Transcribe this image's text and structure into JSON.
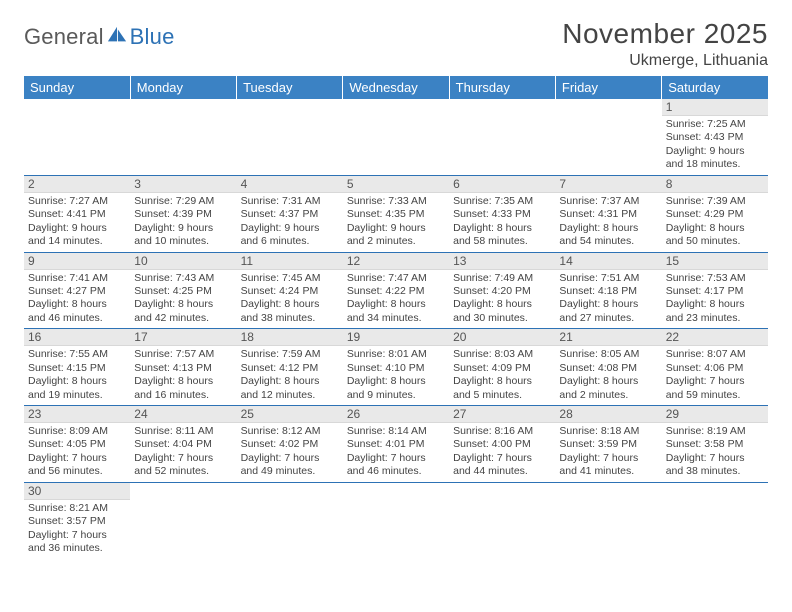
{
  "brand": {
    "word1": "General",
    "word2": "Blue"
  },
  "header": {
    "title": "November 2025",
    "location": "Ukmerge, Lithuania"
  },
  "colors": {
    "header_bg": "#3b82c4",
    "header_text": "#ffffff",
    "week_divider": "#2d72b5",
    "daynum_bg": "#e9e9e9",
    "text": "#444444",
    "brand_gray": "#5a5a5a",
    "brand_blue": "#2d72b5"
  },
  "weekdays": [
    "Sunday",
    "Monday",
    "Tuesday",
    "Wednesday",
    "Thursday",
    "Friday",
    "Saturday"
  ],
  "weeks": [
    [
      null,
      null,
      null,
      null,
      null,
      null,
      {
        "n": "1",
        "sunrise": "7:25 AM",
        "sunset": "4:43 PM",
        "dl_h": "9",
        "dl_m": "18"
      }
    ],
    [
      {
        "n": "2",
        "sunrise": "7:27 AM",
        "sunset": "4:41 PM",
        "dl_h": "9",
        "dl_m": "14"
      },
      {
        "n": "3",
        "sunrise": "7:29 AM",
        "sunset": "4:39 PM",
        "dl_h": "9",
        "dl_m": "10"
      },
      {
        "n": "4",
        "sunrise": "7:31 AM",
        "sunset": "4:37 PM",
        "dl_h": "9",
        "dl_m": "6"
      },
      {
        "n": "5",
        "sunrise": "7:33 AM",
        "sunset": "4:35 PM",
        "dl_h": "9",
        "dl_m": "2"
      },
      {
        "n": "6",
        "sunrise": "7:35 AM",
        "sunset": "4:33 PM",
        "dl_h": "8",
        "dl_m": "58"
      },
      {
        "n": "7",
        "sunrise": "7:37 AM",
        "sunset": "4:31 PM",
        "dl_h": "8",
        "dl_m": "54"
      },
      {
        "n": "8",
        "sunrise": "7:39 AM",
        "sunset": "4:29 PM",
        "dl_h": "8",
        "dl_m": "50"
      }
    ],
    [
      {
        "n": "9",
        "sunrise": "7:41 AM",
        "sunset": "4:27 PM",
        "dl_h": "8",
        "dl_m": "46"
      },
      {
        "n": "10",
        "sunrise": "7:43 AM",
        "sunset": "4:25 PM",
        "dl_h": "8",
        "dl_m": "42"
      },
      {
        "n": "11",
        "sunrise": "7:45 AM",
        "sunset": "4:24 PM",
        "dl_h": "8",
        "dl_m": "38"
      },
      {
        "n": "12",
        "sunrise": "7:47 AM",
        "sunset": "4:22 PM",
        "dl_h": "8",
        "dl_m": "34"
      },
      {
        "n": "13",
        "sunrise": "7:49 AM",
        "sunset": "4:20 PM",
        "dl_h": "8",
        "dl_m": "30"
      },
      {
        "n": "14",
        "sunrise": "7:51 AM",
        "sunset": "4:18 PM",
        "dl_h": "8",
        "dl_m": "27"
      },
      {
        "n": "15",
        "sunrise": "7:53 AM",
        "sunset": "4:17 PM",
        "dl_h": "8",
        "dl_m": "23"
      }
    ],
    [
      {
        "n": "16",
        "sunrise": "7:55 AM",
        "sunset": "4:15 PM",
        "dl_h": "8",
        "dl_m": "19"
      },
      {
        "n": "17",
        "sunrise": "7:57 AM",
        "sunset": "4:13 PM",
        "dl_h": "8",
        "dl_m": "16"
      },
      {
        "n": "18",
        "sunrise": "7:59 AM",
        "sunset": "4:12 PM",
        "dl_h": "8",
        "dl_m": "12"
      },
      {
        "n": "19",
        "sunrise": "8:01 AM",
        "sunset": "4:10 PM",
        "dl_h": "8",
        "dl_m": "9"
      },
      {
        "n": "20",
        "sunrise": "8:03 AM",
        "sunset": "4:09 PM",
        "dl_h": "8",
        "dl_m": "5"
      },
      {
        "n": "21",
        "sunrise": "8:05 AM",
        "sunset": "4:08 PM",
        "dl_h": "8",
        "dl_m": "2"
      },
      {
        "n": "22",
        "sunrise": "8:07 AM",
        "sunset": "4:06 PM",
        "dl_h": "7",
        "dl_m": "59"
      }
    ],
    [
      {
        "n": "23",
        "sunrise": "8:09 AM",
        "sunset": "4:05 PM",
        "dl_h": "7",
        "dl_m": "56"
      },
      {
        "n": "24",
        "sunrise": "8:11 AM",
        "sunset": "4:04 PM",
        "dl_h": "7",
        "dl_m": "52"
      },
      {
        "n": "25",
        "sunrise": "8:12 AM",
        "sunset": "4:02 PM",
        "dl_h": "7",
        "dl_m": "49"
      },
      {
        "n": "26",
        "sunrise": "8:14 AM",
        "sunset": "4:01 PM",
        "dl_h": "7",
        "dl_m": "46"
      },
      {
        "n": "27",
        "sunrise": "8:16 AM",
        "sunset": "4:00 PM",
        "dl_h": "7",
        "dl_m": "44"
      },
      {
        "n": "28",
        "sunrise": "8:18 AM",
        "sunset": "3:59 PM",
        "dl_h": "7",
        "dl_m": "41"
      },
      {
        "n": "29",
        "sunrise": "8:19 AM",
        "sunset": "3:58 PM",
        "dl_h": "7",
        "dl_m": "38"
      }
    ],
    [
      {
        "n": "30",
        "sunrise": "8:21 AM",
        "sunset": "3:57 PM",
        "dl_h": "7",
        "dl_m": "36"
      },
      null,
      null,
      null,
      null,
      null,
      null
    ]
  ],
  "labels": {
    "sunrise": "Sunrise:",
    "sunset": "Sunset:",
    "daylight": "Daylight:",
    "hours": "hours",
    "and": "and",
    "minutes": "minutes."
  }
}
